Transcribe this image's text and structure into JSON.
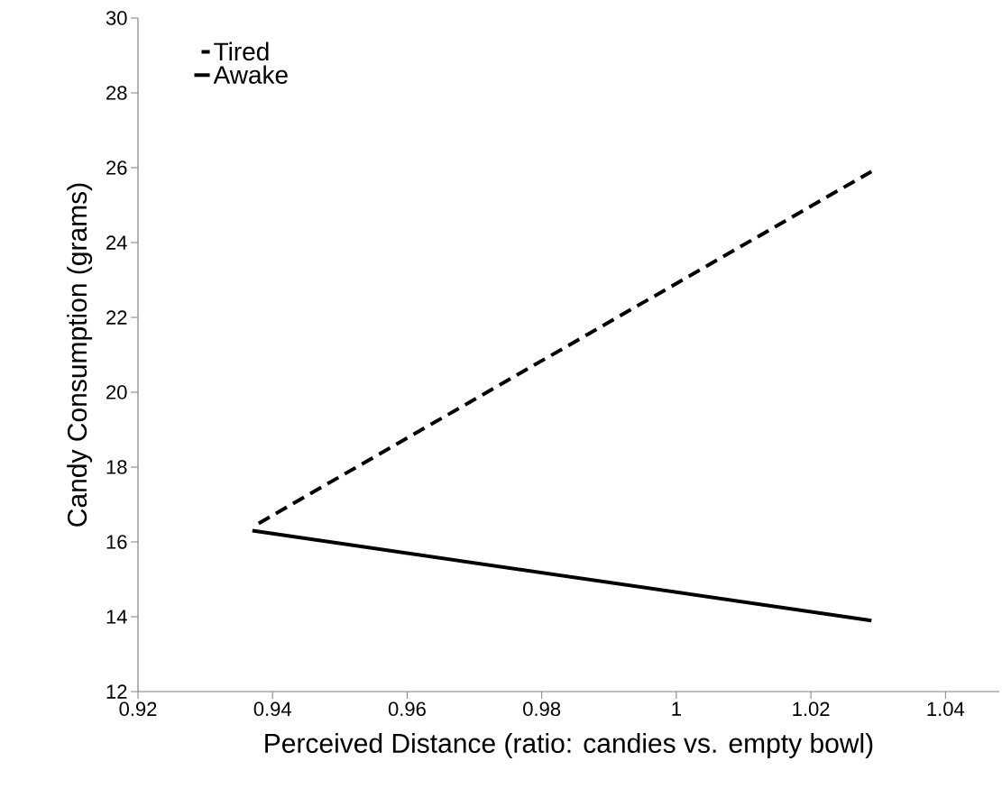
{
  "chart_data": {
    "type": "line",
    "xlabel": "Perceived Distance (ratio: candies vs. empty bowl)",
    "ylabel": "Candy Consumption (grams)",
    "xlim": [
      0.92,
      1.048
    ],
    "xticks": [
      0.92,
      0.94,
      0.96,
      0.98,
      1,
      1.02,
      1.04
    ],
    "ylim": [
      12,
      30
    ],
    "yticks": [
      12,
      14,
      16,
      18,
      20,
      22,
      24,
      26,
      28,
      30
    ],
    "grid": false,
    "x": [
      0.937,
      1.029
    ],
    "legend": "top left",
    "marker": "none",
    "series": [
      {
        "name": "Tired",
        "color": "#000000",
        "line_style": "dashed",
        "values": [
          16.4,
          25.9
        ]
      },
      {
        "name": "Awake",
        "color": "#000000",
        "line_style": "solid",
        "values": [
          16.3,
          13.9
        ]
      }
    ]
  }
}
